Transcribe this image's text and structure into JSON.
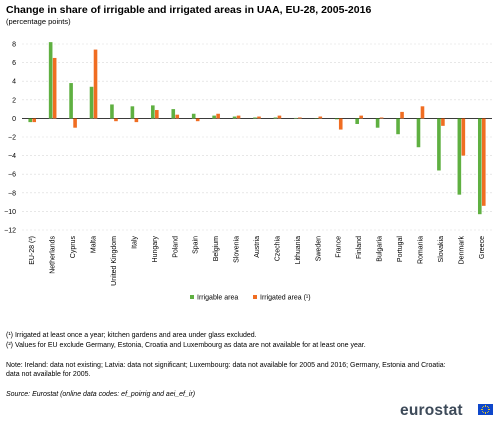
{
  "title": "Change in share of irrigable and irrigated areas in UAA, EU-28, 2005-2016",
  "subtitle": "(percentage  points)",
  "chart_data": {
    "type": "bar",
    "categories": [
      "EU-28 (²)",
      "Netherlands",
      "Cyprus",
      "Malta",
      "United Kingdom",
      "Italy",
      "Hungary",
      "Poland",
      "Spain",
      "Belgium",
      "Slovenia",
      "Austria",
      "Czechia",
      "Lithuania",
      "Sweden",
      "France",
      "Finland",
      "Bulgaria",
      "Portugal",
      "Romania",
      "Slovakia",
      "Denmark",
      "Greece"
    ],
    "series": [
      {
        "name": "Irrigable area",
        "color": "#5fb041",
        "values": [
          -0.4,
          8.2,
          3.8,
          3.4,
          1.5,
          1.3,
          1.4,
          1.0,
          0.5,
          0.3,
          0.2,
          0.1,
          0.1,
          0.05,
          0.0,
          -0.1,
          -0.6,
          -1.0,
          -1.7,
          -3.1,
          -5.6,
          -8.2,
          -10.3
        ]
      },
      {
        "name": "Irrigated area (¹)",
        "color": "#f06d22",
        "values": [
          -0.4,
          6.5,
          -1.0,
          7.4,
          -0.3,
          -0.4,
          0.9,
          0.4,
          -0.3,
          0.5,
          0.3,
          0.2,
          0.3,
          0.1,
          0.2,
          -1.2,
          0.3,
          0.1,
          0.7,
          1.3,
          -0.8,
          -4.0,
          -9.4
        ]
      }
    ],
    "yticks": [
      8,
      6,
      4,
      2,
      0,
      -2,
      -4,
      -6,
      -8,
      -10,
      -12
    ],
    "ylim": [
      -12,
      8
    ],
    "grid": true,
    "legend": "bottom"
  },
  "notes": {
    "n1": "(¹) Irrigated at least once a year; kitchen gardens and area under glass excluded.",
    "n2": "(²) Values for EU exclude Germany, Estonia, Croatia and Luxembourg as data are not available for at least one year.",
    "n3": "Note: Ireland: data not existing; Latvia: data not significant; Luxembourg: data not available for 2005 and 2016; Germany, Estonia and Croatia: data not available for 2005.",
    "source": "Source: Eurostat (online data codes: ef_poirrig and aei_ef_ir)"
  },
  "logo": {
    "text": "eurostat"
  }
}
